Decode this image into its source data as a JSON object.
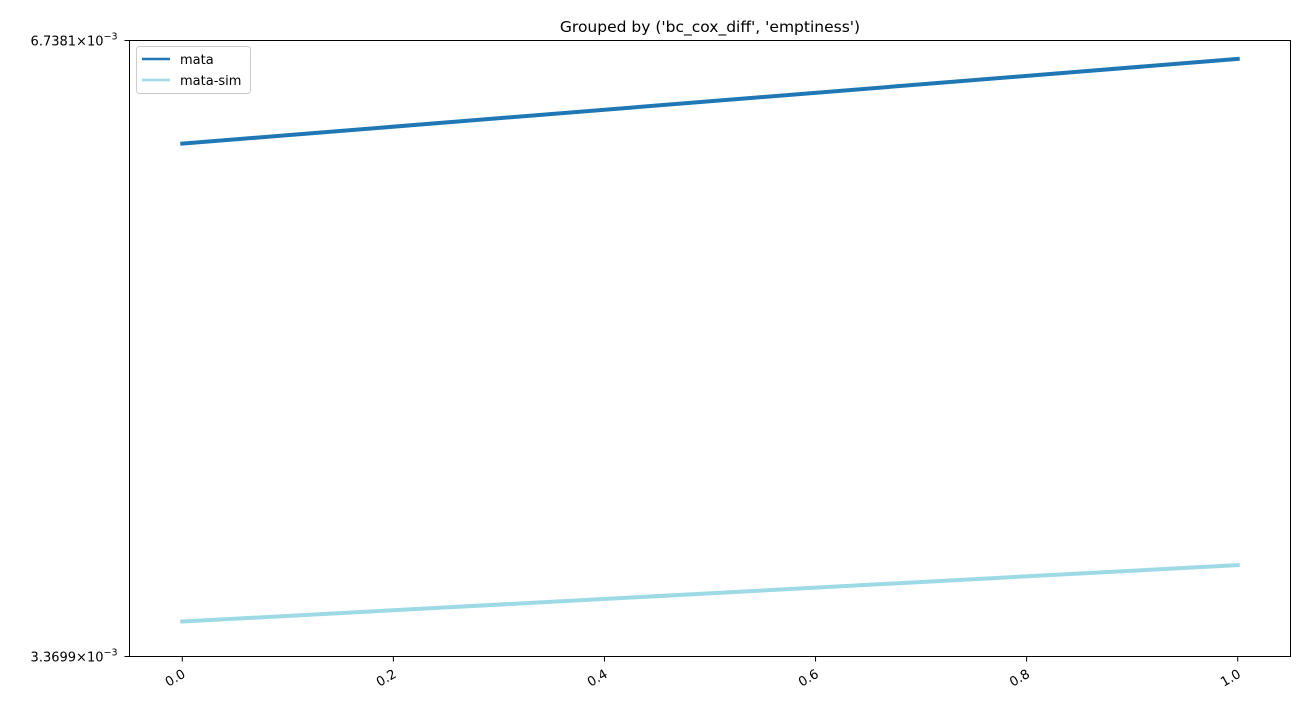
{
  "chart_data": {
    "type": "line",
    "title": "Grouped by ('bc_cox_diff', 'emptiness')",
    "xlabel": "",
    "ylabel": "",
    "y_scale": "log",
    "xlim": [
      -0.05,
      1.05
    ],
    "ylim": [
      0.0033699,
      0.0067381
    ],
    "x_ticks": [
      {
        "value": 0.0,
        "label": "0.0"
      },
      {
        "value": 0.2,
        "label": "0.2"
      },
      {
        "value": 0.4,
        "label": "0.4"
      },
      {
        "value": 0.6,
        "label": "0.6"
      },
      {
        "value": 0.8,
        "label": "0.8"
      },
      {
        "value": 1.0,
        "label": "1.0"
      }
    ],
    "y_ticks": [
      {
        "value": 0.0067381,
        "mantissa": "6.7381",
        "exponent": "−3"
      },
      {
        "value": 0.0033699,
        "mantissa": "3.3699",
        "exponent": "−3"
      }
    ],
    "grid": false,
    "legend_position": "upper-left",
    "series": [
      {
        "name": "mata",
        "color": "#1f77b4",
        "x": [
          0.0,
          1.0
        ],
        "y": [
          0.006,
          0.0066
        ]
      },
      {
        "name": "mata-sim",
        "color": "#9edae5",
        "x": [
          0.0,
          1.0
        ],
        "y": [
          0.003505,
          0.003735
        ]
      }
    ]
  }
}
